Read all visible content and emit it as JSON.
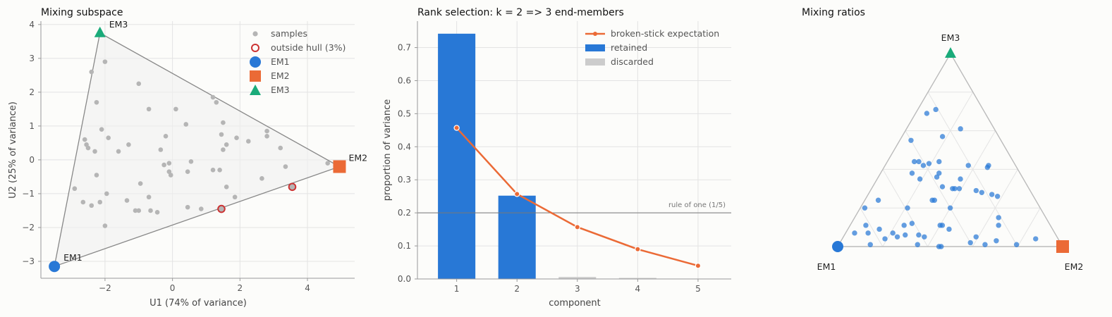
{
  "chart_data": [
    {
      "type": "scatter",
      "title": "Mixing subspace",
      "xlabel": "U1  (74% of variance)",
      "ylabel": "U2  (25% of variance)",
      "xlim": [
        -3.9,
        5.4
      ],
      "ylim": [
        -3.5,
        4.1
      ],
      "xticks": [
        -2,
        0,
        2,
        4
      ],
      "yticks": [
        -3,
        -2,
        -1,
        0,
        1,
        2,
        3,
        4
      ],
      "grid": true,
      "legend_placement": "top-right",
      "legend": [
        "samples",
        "outside hull (3%)",
        "EM1",
        "EM2",
        "EM3"
      ],
      "hull_vertices": [
        {
          "name": "EM1",
          "x": -3.5,
          "y": -3.15,
          "color": "#2878d6",
          "shape": "circle"
        },
        {
          "name": "EM2",
          "x": 4.95,
          "y": -0.2,
          "color": "#eb6a36",
          "shape": "square"
        },
        {
          "name": "EM3",
          "x": -2.15,
          "y": 3.75,
          "color": "#1aab7a",
          "shape": "triangle"
        }
      ],
      "samples": [
        [
          -2.4,
          2.6
        ],
        [
          -2.0,
          2.9
        ],
        [
          -1.0,
          2.25
        ],
        [
          -2.25,
          1.7
        ],
        [
          -0.7,
          1.5
        ],
        [
          0.1,
          1.5
        ],
        [
          1.2,
          1.85
        ],
        [
          1.3,
          1.7
        ],
        [
          -2.1,
          0.9
        ],
        [
          -1.9,
          0.65
        ],
        [
          -2.6,
          0.6
        ],
        [
          -2.55,
          0.45
        ],
        [
          -2.5,
          0.35
        ],
        [
          -2.3,
          0.25
        ],
        [
          -1.6,
          0.25
        ],
        [
          -1.3,
          0.45
        ],
        [
          -0.35,
          0.3
        ],
        [
          -0.2,
          0.7
        ],
        [
          0.4,
          1.05
        ],
        [
          1.5,
          1.1
        ],
        [
          1.45,
          0.75
        ],
        [
          1.9,
          0.65
        ],
        [
          2.25,
          0.55
        ],
        [
          2.8,
          0.85
        ],
        [
          2.8,
          0.7
        ],
        [
          3.2,
          0.35
        ],
        [
          1.5,
          0.3
        ],
        [
          1.6,
          0.45
        ],
        [
          -0.25,
          -0.15
        ],
        [
          -0.1,
          -0.1
        ],
        [
          -0.1,
          -0.35
        ],
        [
          -0.05,
          -0.45
        ],
        [
          0.55,
          -0.05
        ],
        [
          0.45,
          -0.35
        ],
        [
          1.2,
          -0.3
        ],
        [
          1.4,
          -0.3
        ],
        [
          3.35,
          -0.2
        ],
        [
          4.6,
          -0.1
        ],
        [
          2.65,
          -0.55
        ],
        [
          -2.25,
          -0.45
        ],
        [
          -1.95,
          -1.0
        ],
        [
          -0.95,
          -0.7
        ],
        [
          -2.9,
          -0.85
        ],
        [
          -0.7,
          -1.1
        ],
        [
          1.6,
          -0.8
        ],
        [
          1.85,
          -1.1
        ],
        [
          -2.65,
          -1.25
        ],
        [
          -2.4,
          -1.35
        ],
        [
          -2.15,
          -1.25
        ],
        [
          -1.35,
          -1.2
        ],
        [
          -1.1,
          -1.5
        ],
        [
          -1.0,
          -1.5
        ],
        [
          -0.65,
          -1.5
        ],
        [
          -0.45,
          -1.55
        ],
        [
          0.45,
          -1.4
        ],
        [
          0.85,
          -1.45
        ],
        [
          -2.0,
          -1.95
        ]
      ],
      "outside_hull": [
        [
          1.45,
          -1.45
        ],
        [
          3.55,
          -0.8
        ]
      ]
    },
    {
      "type": "bar",
      "title": "Rank selection: k = 2  =>  3 end-members",
      "xlabel": "component",
      "ylabel": "proportion of variance",
      "categories": [
        1,
        2,
        3,
        4,
        5
      ],
      "xlim": [
        0.35,
        5.55
      ],
      "ylim": [
        0,
        0.78
      ],
      "yticks": [
        0.0,
        0.1,
        0.2,
        0.3,
        0.4,
        0.5,
        0.6,
        0.7
      ],
      "grid": true,
      "legend_placement": "top-right",
      "series": [
        {
          "name": "retained",
          "values": [
            0.742,
            0.252,
            null,
            null,
            null
          ],
          "color": "#2878d6"
        },
        {
          "name": "discarded",
          "values": [
            null,
            null,
            0.006,
            0.002,
            0.0
          ],
          "color": "#cccccc"
        },
        {
          "name": "broken-stick expectation",
          "values": [
            0.457,
            0.257,
            0.157,
            0.09,
            0.04
          ],
          "color": "#eb6a36",
          "kind": "line"
        }
      ],
      "reference_line": {
        "y": 0.2,
        "label": "rule of one (1/5)"
      }
    },
    {
      "type": "scatter",
      "title": "Mixing ratios",
      "subtype": "ternary",
      "corners": [
        {
          "name": "EM1",
          "position": "bottom-left",
          "color": "#2878d6",
          "shape": "circle"
        },
        {
          "name": "EM2",
          "position": "bottom-right",
          "color": "#eb6a36",
          "shape": "square"
        },
        {
          "name": "EM3",
          "position": "top",
          "color": "#1aab7a",
          "shape": "triangle"
        }
      ],
      "grid_fractions": [
        0.2,
        0.4,
        0.6,
        0.8
      ],
      "points_em1_em2_em3": [
        [
          0.26,
          0.05,
          0.69
        ],
        [
          0.21,
          0.08,
          0.71
        ],
        [
          0.15,
          0.24,
          0.61
        ],
        [
          0.25,
          0.18,
          0.57
        ],
        [
          0.4,
          0.05,
          0.55
        ],
        [
          0.21,
          0.37,
          0.42
        ],
        [
          0.33,
          0.23,
          0.44
        ],
        [
          0.38,
          0.19,
          0.43
        ],
        [
          0.44,
          0.12,
          0.44
        ],
        [
          0.42,
          0.14,
          0.44
        ],
        [
          0.41,
          0.17,
          0.42
        ],
        [
          0.36,
          0.26,
          0.38
        ],
        [
          0.13,
          0.46,
          0.41
        ],
        [
          0.12,
          0.46,
          0.42
        ],
        [
          0.38,
          0.26,
          0.36
        ],
        [
          0.28,
          0.37,
          0.35
        ],
        [
          0.48,
          0.14,
          0.38
        ],
        [
          0.46,
          0.19,
          0.35
        ],
        [
          0.38,
          0.31,
          0.31
        ],
        [
          0.33,
          0.37,
          0.3
        ],
        [
          0.31,
          0.39,
          0.3
        ],
        [
          0.24,
          0.47,
          0.29
        ],
        [
          0.22,
          0.5,
          0.28
        ],
        [
          0.18,
          0.55,
          0.27
        ],
        [
          0.16,
          0.58,
          0.26
        ],
        [
          0.34,
          0.36,
          0.3
        ],
        [
          0.45,
          0.31,
          0.24
        ],
        [
          0.46,
          0.3,
          0.24
        ],
        [
          0.4,
          0.4,
          0.2
        ],
        [
          0.59,
          0.21,
          0.2
        ],
        [
          0.78,
          0.02,
          0.2
        ],
        [
          0.7,
          0.06,
          0.24
        ],
        [
          0.21,
          0.64,
          0.15
        ],
        [
          0.23,
          0.66,
          0.11
        ],
        [
          0.48,
          0.41,
          0.11
        ],
        [
          0.61,
          0.27,
          0.12
        ],
        [
          0.65,
          0.24,
          0.11
        ],
        [
          0.49,
          0.4,
          0.11
        ],
        [
          0.46,
          0.45,
          0.09
        ],
        [
          0.82,
          0.07,
          0.11
        ],
        [
          0.77,
          0.14,
          0.09
        ],
        [
          0.89,
          0.04,
          0.07
        ],
        [
          0.72,
          0.21,
          0.07
        ],
        [
          0.61,
          0.33,
          0.06
        ],
        [
          0.67,
          0.27,
          0.06
        ],
        [
          0.59,
          0.36,
          0.05
        ],
        [
          0.36,
          0.59,
          0.05
        ],
        [
          0.28,
          0.69,
          0.03
        ],
        [
          0.4,
          0.58,
          0.02
        ],
        [
          0.85,
          0.14,
          0.01
        ],
        [
          0.54,
          0.46,
          0.0
        ],
        [
          0.55,
          0.45,
          0.0
        ],
        [
          0.1,
          0.86,
          0.04
        ],
        [
          0.83,
          0.1,
          0.07
        ],
        [
          0.77,
          0.19,
          0.04
        ],
        [
          0.71,
          0.24,
          0.05
        ],
        [
          0.64,
          0.35,
          0.01
        ],
        [
          0.34,
          0.65,
          0.01
        ],
        [
          0.2,
          0.79,
          0.01
        ]
      ]
    }
  ]
}
